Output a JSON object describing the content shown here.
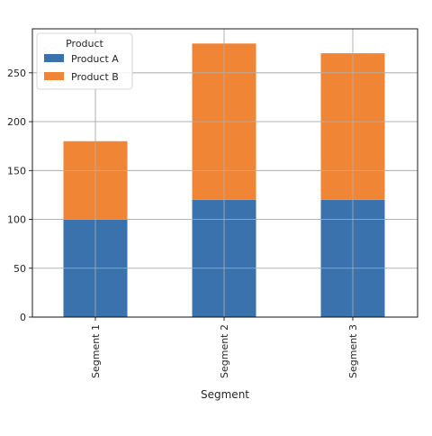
{
  "chart_data": {
    "type": "bar",
    "stacked": true,
    "categories": [
      "Segment 1",
      "Segment 2",
      "Segment 3"
    ],
    "series": [
      {
        "name": "Product A",
        "values": [
          100,
          120,
          120
        ],
        "color": "#3a72ae"
      },
      {
        "name": "Product B",
        "values": [
          80,
          160,
          150
        ],
        "color": "#ef8535"
      }
    ],
    "xlabel": "Segment",
    "ylabel": "",
    "ylim": [
      0,
      295
    ],
    "yticks": [
      0,
      50,
      100,
      150,
      200,
      250
    ],
    "grid": true,
    "legend": {
      "title": "Product",
      "position": "top-left"
    }
  }
}
